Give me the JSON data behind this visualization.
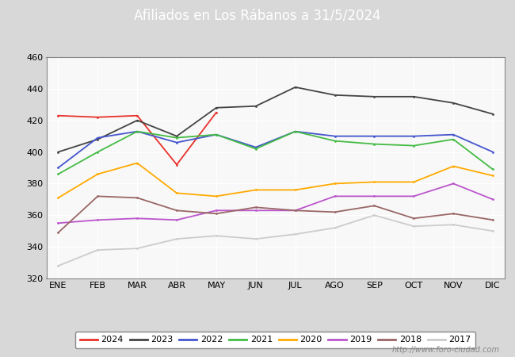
{
  "title": "Afiliados en Los Rábanos a 31/5/2024",
  "ylim": [
    320,
    460
  ],
  "yticks": [
    320,
    340,
    360,
    380,
    400,
    420,
    440,
    460
  ],
  "months": [
    "ENE",
    "FEB",
    "MAR",
    "ABR",
    "MAY",
    "JUN",
    "JUL",
    "AGO",
    "SEP",
    "OCT",
    "NOV",
    "DIC"
  ],
  "series": {
    "2024": {
      "color": "#e8312a",
      "data": [
        423,
        422,
        423,
        392,
        425,
        null,
        null,
        null,
        null,
        null,
        null,
        null
      ]
    },
    "2023": {
      "color": "#444444",
      "data": [
        400,
        408,
        420,
        410,
        428,
        429,
        441,
        436,
        435,
        435,
        431,
        424
      ]
    },
    "2022": {
      "color": "#4455cc",
      "data": [
        390,
        409,
        413,
        406,
        411,
        403,
        413,
        410,
        410,
        410,
        411,
        400
      ]
    },
    "2021": {
      "color": "#44bb44",
      "data": [
        386,
        400,
        413,
        409,
        411,
        402,
        413,
        407,
        405,
        404,
        408,
        389
      ]
    },
    "2020": {
      "color": "#ffaa00",
      "data": [
        371,
        386,
        393,
        374,
        372,
        376,
        376,
        380,
        381,
        381,
        391,
        385
      ]
    },
    "2019": {
      "color": "#bb55cc",
      "data": [
        355,
        357,
        358,
        357,
        363,
        363,
        363,
        372,
        372,
        372,
        380,
        370
      ]
    },
    "2018": {
      "color": "#996666",
      "data": [
        349,
        372,
        371,
        363,
        361,
        365,
        363,
        362,
        366,
        358,
        361,
        357
      ]
    },
    "2017": {
      "color": "#cccccc",
      "data": [
        328,
        338,
        339,
        345,
        347,
        345,
        348,
        352,
        360,
        353,
        354,
        350
      ]
    }
  },
  "legend_order": [
    "2024",
    "2023",
    "2022",
    "2021",
    "2020",
    "2019",
    "2018",
    "2017"
  ],
  "header_color": "#5588cc",
  "title_text_color": "#ffffff",
  "bg_color": "#d8d8d8",
  "plot_bg_color": "#f8f8f8",
  "plot_inner_bg": "#ffffff",
  "grid_color": "#cccccc",
  "watermark": "http://www.foro-ciudad.com"
}
